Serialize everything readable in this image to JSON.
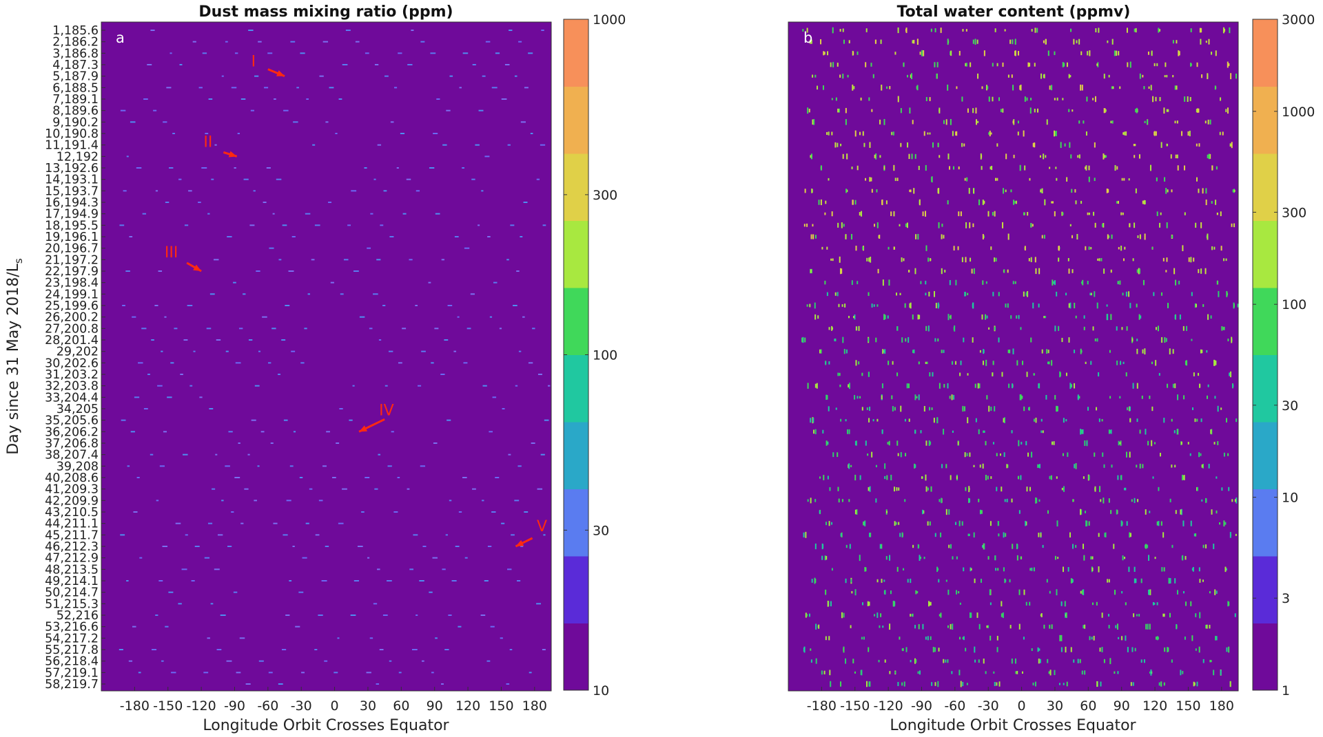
{
  "chart_data": [
    {
      "type": "heatmap",
      "panel_label": "a",
      "title": "Dust mass mixing ratio (ppm)",
      "xlabel": "Longitude Orbit Crosses Equator",
      "ylabel": "Day since 31 May 2018/L",
      "ylabel_subscript": "s",
      "xlim": [
        -210,
        195
      ],
      "xticks": [
        "-180",
        "-150",
        "-120",
        "-90",
        "-60",
        "-30",
        "0",
        "30",
        "60",
        "90",
        "120",
        "150",
        "180"
      ],
      "colorbar": {
        "scale": "log",
        "range": [
          10,
          1000
        ],
        "ticks": [
          "10",
          "30",
          "100",
          "300",
          "1000"
        ],
        "colors": [
          "#6f0a9a",
          "#5a2bd8",
          "#5a7cf0",
          "#2aa8c8",
          "#20c8a0",
          "#40d85a",
          "#a8e840",
          "#e0d048",
          "#f0b050",
          "#f7905a"
        ]
      },
      "background_color": "#6f0a9a",
      "annotations": [
        {
          "label": "I",
          "day": 5,
          "lon": -45
        },
        {
          "label": "II",
          "day": 12,
          "lon": -88
        },
        {
          "label": "III",
          "day": 22,
          "lon": -120
        },
        {
          "label": "IV",
          "day": 36,
          "lon": 22
        },
        {
          "label": "V",
          "day": 46,
          "lon": 163
        }
      ]
    },
    {
      "type": "heatmap",
      "panel_label": "b",
      "title": "Total water content (ppmv)",
      "xlabel": "Longitude Orbit Crosses Equator",
      "xlim": [
        -210,
        195
      ],
      "xticks": [
        "-180",
        "-150",
        "-120",
        "-90",
        "-60",
        "-30",
        "0",
        "30",
        "60",
        "90",
        "120",
        "150",
        "180"
      ],
      "colorbar": {
        "scale": "log",
        "range": [
          1,
          3000
        ],
        "ticks": [
          "1",
          "3",
          "10",
          "30",
          "100",
          "300",
          "1000",
          "3000"
        ],
        "colors": [
          "#6f0a9a",
          "#5a2bd8",
          "#5a7cf0",
          "#2aa8c8",
          "#20c8a0",
          "#40d85a",
          "#a8e840",
          "#e0d048",
          "#f0b050",
          "#f7905a"
        ]
      },
      "background_color": "#6f0a9a"
    }
  ],
  "days": [
    "1,185.6",
    "2,186.2",
    "3,186.8",
    "4,187.3",
    "5,187.9",
    "6,188.5",
    "7,189.1",
    "8,189.6",
    "9,190.2",
    "10,190.8",
    "11,191.4",
    "12,192",
    "13,192.6",
    "14,193.1",
    "15,193.7",
    "16,194.3",
    "17,194.9",
    "18,195.5",
    "19,196.1",
    "20,196.7",
    "21,197.2",
    "22,197.9",
    "23,198.4",
    "24,199.1",
    "25,199.6",
    "26,200.2",
    "27,200.8",
    "28,201.4",
    "29,202",
    "30,202.6",
    "31,203.2",
    "32,203.8",
    "33,204.4",
    "34,205",
    "35,205.6",
    "36,206.2",
    "37,206.8",
    "38,207.4",
    "39,208",
    "40,208.6",
    "41,209.3",
    "42,209.9",
    "43,210.5",
    "44,211.1",
    "45,211.7",
    "46,212.3",
    "47,212.9",
    "48,213.5",
    "49,214.1",
    "50,214.7",
    "51,215.3",
    "52,216",
    "53,216.6",
    "54,217.2",
    "55,217.8",
    "56,218.4",
    "57,219.1",
    "58,219.7"
  ]
}
